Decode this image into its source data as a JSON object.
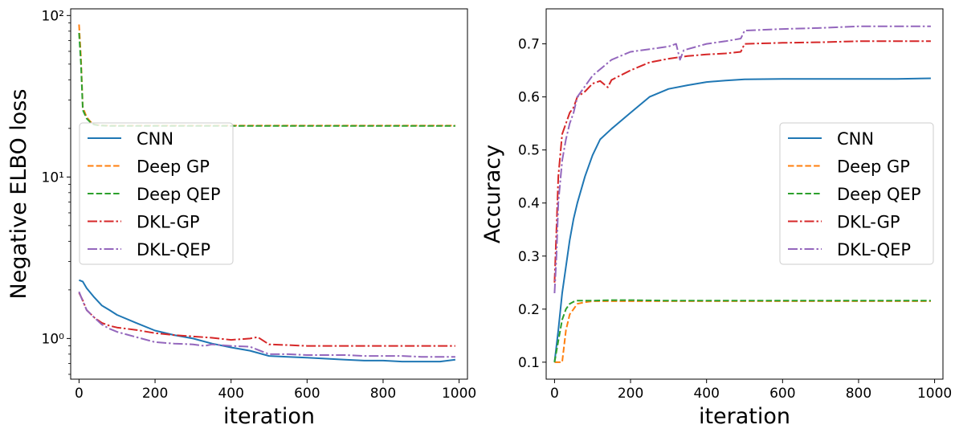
{
  "chart_data": [
    {
      "type": "line",
      "yscale": "log",
      "xlabel": "iteration",
      "ylabel": "Negative ELBO loss",
      "xlim": [
        -22,
        1022
      ],
      "ylim": [
        0.56,
        110
      ],
      "xticks": [
        0,
        200,
        400,
        600,
        800,
        1000
      ],
      "xtick_labels": [
        "0",
        "200",
        "400",
        "600",
        "800",
        "1000"
      ],
      "yticks": [
        1,
        10,
        100
      ],
      "ytick_labels": [
        "10⁰",
        "10¹",
        "10²"
      ],
      "legend_position": "center-left",
      "legend": [
        "CNN",
        "Deep GP",
        "Deep QEP",
        "DKL-GP",
        "DKL-QEP"
      ],
      "series": [
        {
          "name": "CNN",
          "color": "#1f77b4",
          "dash": "solid",
          "x": [
            0,
            10,
            20,
            40,
            60,
            80,
            100,
            150,
            200,
            250,
            300,
            350,
            400,
            450,
            500,
            550,
            600,
            650,
            700,
            750,
            800,
            850,
            900,
            950,
            990
          ],
          "y": [
            2.3,
            2.25,
            2.05,
            1.8,
            1.6,
            1.5,
            1.4,
            1.25,
            1.12,
            1.05,
            1.0,
            0.93,
            0.88,
            0.84,
            0.78,
            0.77,
            0.76,
            0.75,
            0.74,
            0.73,
            0.73,
            0.72,
            0.72,
            0.72,
            0.74
          ]
        },
        {
          "name": "Deep GP",
          "color": "#ff7f0e",
          "dash": "dashed",
          "x": [
            0,
            5,
            10,
            20,
            30,
            40,
            50,
            60,
            80,
            100,
            150,
            200,
            300,
            400,
            500,
            600,
            700,
            800,
            900,
            990
          ],
          "y": [
            88,
            55,
            27,
            23.5,
            22,
            21.2,
            21,
            20.9,
            20.8,
            20.8,
            20.8,
            20.8,
            20.8,
            20.8,
            20.8,
            20.8,
            20.8,
            20.8,
            20.8,
            20.8
          ]
        },
        {
          "name": "Deep QEP",
          "color": "#2ca02c",
          "dash": "dashed",
          "x": [
            0,
            5,
            10,
            20,
            30,
            40,
            50,
            60,
            80,
            100,
            150,
            200,
            300,
            400,
            500,
            600,
            700,
            800,
            900,
            990
          ],
          "y": [
            78,
            50,
            26,
            23,
            21.8,
            21.1,
            20.9,
            20.8,
            20.7,
            20.7,
            20.7,
            20.7,
            20.7,
            20.7,
            20.7,
            20.7,
            20.7,
            20.7,
            20.7,
            20.7
          ]
        },
        {
          "name": "DKL-GP",
          "color": "#d62728",
          "dash": "dashdot",
          "x": [
            0,
            10,
            20,
            40,
            60,
            80,
            100,
            150,
            200,
            250,
            300,
            350,
            400,
            450,
            470,
            500,
            550,
            600,
            650,
            700,
            750,
            800,
            850,
            900,
            950,
            990
          ],
          "y": [
            1.92,
            1.72,
            1.5,
            1.35,
            1.25,
            1.2,
            1.17,
            1.13,
            1.08,
            1.05,
            1.03,
            1.01,
            0.98,
            1.0,
            1.02,
            0.92,
            0.91,
            0.9,
            0.9,
            0.9,
            0.9,
            0.9,
            0.9,
            0.9,
            0.9,
            0.9
          ]
        },
        {
          "name": "DKL-QEP",
          "color": "#9467bd",
          "dash": "dashdot",
          "x": [
            0,
            10,
            20,
            40,
            60,
            80,
            100,
            150,
            200,
            250,
            300,
            330,
            350,
            400,
            450,
            500,
            550,
            600,
            650,
            700,
            750,
            800,
            850,
            900,
            950,
            990
          ],
          "y": [
            1.95,
            1.7,
            1.5,
            1.35,
            1.22,
            1.15,
            1.1,
            1.02,
            0.95,
            0.93,
            0.92,
            0.9,
            0.92,
            0.9,
            0.89,
            0.8,
            0.8,
            0.79,
            0.79,
            0.79,
            0.78,
            0.78,
            0.78,
            0.77,
            0.77,
            0.77
          ]
        }
      ]
    },
    {
      "type": "line",
      "yscale": "linear",
      "xlabel": "iteration",
      "ylabel": "Accuracy",
      "xlim": [
        -22,
        1022
      ],
      "ylim": [
        0.068,
        0.766
      ],
      "xticks": [
        0,
        200,
        400,
        600,
        800,
        1000
      ],
      "xtick_labels": [
        "0",
        "200",
        "400",
        "600",
        "800",
        "1000"
      ],
      "yticks": [
        0.1,
        0.2,
        0.3,
        0.4,
        0.5,
        0.6,
        0.7
      ],
      "ytick_labels": [
        "0.1",
        "0.2",
        "0.3",
        "0.4",
        "0.5",
        "0.6",
        "0.7"
      ],
      "legend_position": "center-right",
      "legend": [
        "CNN",
        "Deep GP",
        "Deep QEP",
        "DKL-GP",
        "DKL-QEP"
      ],
      "series": [
        {
          "name": "CNN",
          "color": "#1f77b4",
          "dash": "solid",
          "x": [
            0,
            10,
            20,
            30,
            40,
            50,
            60,
            80,
            100,
            120,
            150,
            200,
            250,
            300,
            350,
            400,
            450,
            500,
            600,
            700,
            800,
            900,
            990
          ],
          "y": [
            0.1,
            0.16,
            0.23,
            0.28,
            0.33,
            0.37,
            0.4,
            0.45,
            0.49,
            0.52,
            0.54,
            0.57,
            0.6,
            0.615,
            0.622,
            0.628,
            0.631,
            0.633,
            0.634,
            0.634,
            0.634,
            0.634,
            0.635
          ]
        },
        {
          "name": "Deep GP",
          "color": "#ff7f0e",
          "dash": "dashed",
          "x": [
            0,
            10,
            20,
            30,
            40,
            50,
            60,
            80,
            100,
            150,
            200,
            300,
            400,
            500,
            600,
            700,
            800,
            900,
            990
          ],
          "y": [
            0.1,
            0.1,
            0.1,
            0.16,
            0.19,
            0.2,
            0.21,
            0.213,
            0.215,
            0.215,
            0.215,
            0.215,
            0.215,
            0.215,
            0.215,
            0.215,
            0.215,
            0.215,
            0.215
          ]
        },
        {
          "name": "Deep QEP",
          "color": "#2ca02c",
          "dash": "dashed",
          "x": [
            0,
            10,
            20,
            30,
            40,
            50,
            60,
            80,
            100,
            150,
            200,
            300,
            400,
            500,
            600,
            700,
            800,
            900,
            990
          ],
          "y": [
            0.1,
            0.14,
            0.18,
            0.2,
            0.21,
            0.214,
            0.216,
            0.216,
            0.216,
            0.217,
            0.217,
            0.216,
            0.216,
            0.216,
            0.216,
            0.216,
            0.216,
            0.216,
            0.216
          ]
        },
        {
          "name": "DKL-GP",
          "color": "#d62728",
          "dash": "dashdot",
          "x": [
            0,
            5,
            10,
            20,
            30,
            40,
            50,
            60,
            80,
            100,
            120,
            140,
            150,
            200,
            250,
            300,
            350,
            400,
            450,
            490,
            500,
            600,
            700,
            800,
            900,
            990
          ],
          "y": [
            0.25,
            0.35,
            0.45,
            0.53,
            0.55,
            0.57,
            0.58,
            0.6,
            0.61,
            0.625,
            0.63,
            0.618,
            0.632,
            0.65,
            0.665,
            0.672,
            0.677,
            0.68,
            0.682,
            0.685,
            0.7,
            0.702,
            0.703,
            0.705,
            0.705,
            0.705
          ]
        },
        {
          "name": "DKL-QEP",
          "color": "#9467bd",
          "dash": "dashdot",
          "x": [
            0,
            5,
            10,
            20,
            30,
            40,
            50,
            60,
            80,
            100,
            150,
            200,
            250,
            300,
            320,
            330,
            340,
            350,
            400,
            450,
            490,
            500,
            600,
            700,
            800,
            900,
            990
          ],
          "y": [
            0.23,
            0.3,
            0.4,
            0.48,
            0.52,
            0.55,
            0.57,
            0.6,
            0.62,
            0.64,
            0.67,
            0.685,
            0.69,
            0.695,
            0.7,
            0.67,
            0.688,
            0.69,
            0.7,
            0.705,
            0.71,
            0.725,
            0.728,
            0.73,
            0.733,
            0.733,
            0.733
          ]
        }
      ]
    }
  ]
}
